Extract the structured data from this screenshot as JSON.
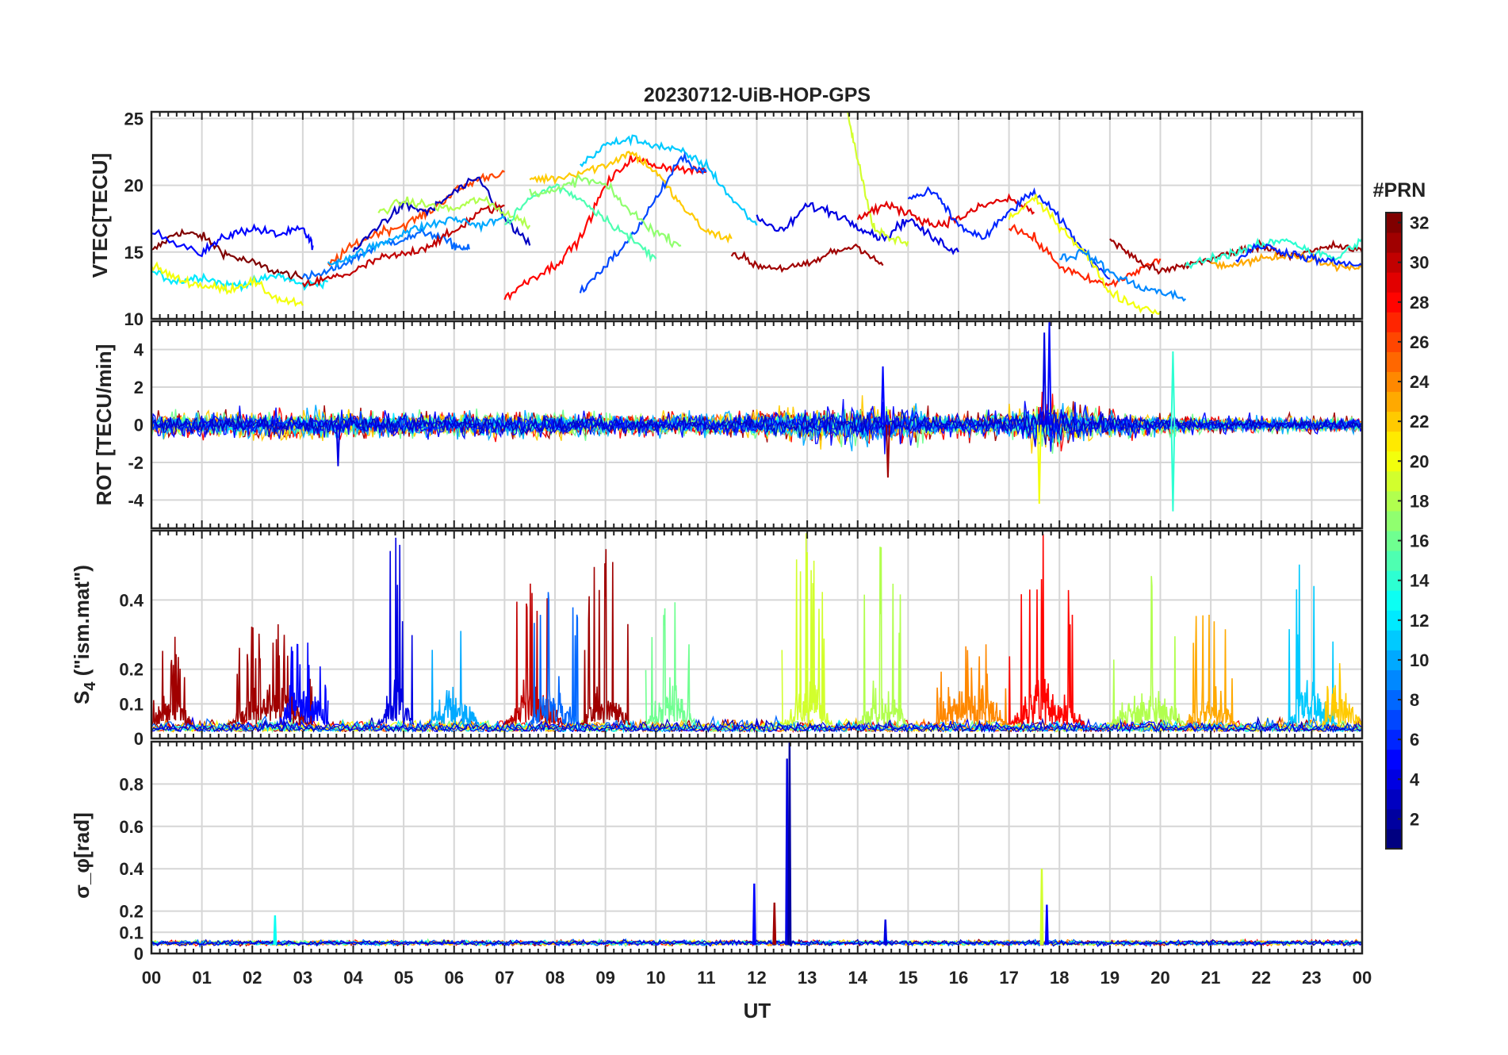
{
  "chart_data": {
    "type": "line",
    "title": "20230712-UiB-HOP-GPS",
    "xlabel": "UT",
    "x_ticks": [
      "00",
      "01",
      "02",
      "03",
      "04",
      "05",
      "06",
      "07",
      "08",
      "09",
      "10",
      "11",
      "12",
      "13",
      "14",
      "15",
      "16",
      "17",
      "18",
      "19",
      "20",
      "21",
      "22",
      "23",
      "00"
    ],
    "xlim": [
      0,
      24
    ],
    "colorbar": {
      "title": "#PRN",
      "range": [
        1,
        32
      ],
      "ticks": [
        "2",
        "4",
        "6",
        "8",
        "10",
        "12",
        "14",
        "16",
        "18",
        "20",
        "22",
        "24",
        "26",
        "28",
        "30",
        "32"
      ],
      "colormap": "jet"
    },
    "panels": [
      {
        "id": "vtec",
        "ylabel": "VTEC[TECU]",
        "ylim": [
          10,
          25.5
        ],
        "yticks": [
          "10",
          "15",
          "20",
          "25"
        ],
        "series": [
          {
            "prn": 32,
            "x": [
              0,
              0.5,
              1,
              1.5,
              2,
              2.5,
              3
            ],
            "y": [
              15,
              16.5,
              16.2,
              14.8,
              14.2,
              13.5,
              13
            ]
          },
          {
            "prn": 5,
            "x": [
              0,
              1,
              1.5,
              2,
              2.5,
              3,
              3.2
            ],
            "y": [
              16.5,
              15,
              16.2,
              16.8,
              16.3,
              16.7,
              15.5
            ]
          },
          {
            "prn": 12,
            "x": [
              0,
              0.5,
              1,
              1.5,
              2,
              2.5,
              3,
              3.5
            ],
            "y": [
              13.5,
              12.8,
              13.2,
              12.5,
              12.7,
              13.3,
              12.5,
              12.8
            ]
          },
          {
            "prn": 20,
            "x": [
              0,
              0.5,
              1,
              1.5,
              2,
              2.5,
              3
            ],
            "y": [
              14,
              13,
              12.5,
              12.2,
              12.8,
              11.5,
              11
            ]
          },
          {
            "prn": 26,
            "x": [
              3.5,
              4,
              4.5,
              5,
              5.5,
              6,
              6.5,
              7
            ],
            "y": [
              14,
              15.5,
              16.5,
              17,
              18,
              19.5,
              20.5,
              21
            ]
          },
          {
            "prn": 8,
            "x": [
              3,
              3.5,
              4,
              4.5,
              5,
              5.5,
              6,
              6.3
            ],
            "y": [
              13,
              13.5,
              14.5,
              15.5,
              16,
              16.5,
              15.5,
              15.2
            ]
          },
          {
            "prn": 3,
            "x": [
              4,
              4.5,
              5,
              5.5,
              6,
              6.5,
              7,
              7.5
            ],
            "y": [
              15,
              17,
              18.5,
              18,
              19.5,
              20.5,
              17.5,
              15.5
            ]
          },
          {
            "prn": 30,
            "x": [
              3,
              3.5,
              4,
              4.5,
              5,
              5.5,
              6,
              6.5,
              7
            ],
            "y": [
              12.5,
              13,
              13.5,
              14.5,
              14.8,
              15.5,
              16.5,
              18,
              18.5
            ]
          },
          {
            "prn": 10,
            "x": [
              3.5,
              4,
              4.5,
              5,
              5.5,
              6,
              6.5,
              7
            ],
            "y": [
              14,
              14.8,
              15.5,
              16.5,
              17,
              17.5,
              17,
              17.5
            ]
          },
          {
            "prn": 18,
            "x": [
              4.5,
              5,
              5.5,
              6,
              6.5,
              7,
              7.5
            ],
            "y": [
              18,
              18.8,
              18.5,
              18.2,
              19,
              18,
              17
            ]
          },
          {
            "prn": 28,
            "x": [
              7,
              7.5,
              8,
              8.5,
              9,
              9.5,
              10,
              10.5,
              11
            ],
            "y": [
              11.5,
              13,
              14,
              16,
              20,
              22,
              21.5,
              21.2,
              21
            ]
          },
          {
            "prn": 22,
            "x": [
              7.5,
              8,
              8.5,
              9,
              9.5,
              10,
              10.5,
              11,
              11.5
            ],
            "y": [
              20.5,
              20.5,
              21,
              21.5,
              22.5,
              21,
              18.5,
              16.5,
              16
            ]
          },
          {
            "prn": 11,
            "x": [
              8.5,
              9,
              9.5,
              10,
              10.5,
              11,
              11.5,
              12
            ],
            "y": [
              21.5,
              23,
              23.5,
              23,
              22.5,
              21.5,
              19,
              17
            ]
          },
          {
            "prn": 7,
            "x": [
              8.5,
              9,
              9.5,
              10,
              10.5,
              11
            ],
            "y": [
              12,
              14,
              16,
              19,
              22,
              21
            ]
          },
          {
            "prn": 15,
            "x": [
              7,
              7.5,
              8,
              8.5,
              9,
              9.5,
              10
            ],
            "y": [
              17,
              19,
              20,
              19,
              17.5,
              16,
              14.5
            ]
          },
          {
            "prn": 17,
            "x": [
              7.5,
              8,
              8.5,
              9,
              9.5,
              10,
              10.5
            ],
            "y": [
              19.5,
              19.5,
              20.5,
              20,
              18,
              16.5,
              15.5
            ]
          },
          {
            "prn": 31,
            "x": [
              11.5,
              12,
              12.5,
              13,
              13.5,
              14,
              14.5
            ],
            "y": [
              15,
              14,
              13.8,
              14,
              15,
              15.5,
              14
            ]
          },
          {
            "prn": 4,
            "x": [
              12,
              12.5,
              13,
              13.5,
              14,
              14.5,
              15,
              15.5,
              16
            ],
            "y": [
              17.5,
              16.5,
              18.5,
              18,
              17,
              16,
              17.5,
              16,
              15
            ]
          },
          {
            "prn": 19,
            "x": [
              13.8,
              14,
              14.3,
              14.6,
              15
            ],
            "y": [
              25.5,
              22,
              17,
              16,
              15.8
            ]
          },
          {
            "prn": 29,
            "x": [
              14,
              14.5,
              15,
              15.5,
              16,
              16.5,
              17,
              17.5
            ],
            "y": [
              17.5,
              18.5,
              18,
              17,
              17.5,
              18.5,
              19,
              18
            ]
          },
          {
            "prn": 6,
            "x": [
              15,
              15.5,
              16,
              16.5,
              17,
              17.5,
              18,
              18.5,
              19
            ],
            "y": [
              19,
              19.5,
              17,
              16,
              18,
              19.5,
              17.5,
              15,
              13
            ]
          },
          {
            "prn": 27,
            "x": [
              17,
              17.5,
              18,
              18.5,
              19,
              19.5,
              20
            ],
            "y": [
              17,
              16,
              14,
              13,
              12.5,
              13.5,
              14.5
            ]
          },
          {
            "prn": 20,
            "x": [
              17,
              17.5,
              18,
              18.5,
              19,
              19.5,
              20
            ],
            "y": [
              17.5,
              19,
              17,
              15,
              12,
              11,
              10.5
            ]
          },
          {
            "prn": 9,
            "x": [
              18,
              18.5,
              19,
              19.5,
              20,
              20.5
            ],
            "y": [
              14.5,
              15,
              13.5,
              12.5,
              12,
              11.5
            ]
          },
          {
            "prn": 31,
            "x": [
              19,
              19.5,
              20,
              20.5,
              21,
              21.5,
              22,
              22.5,
              23,
              23.5,
              24
            ],
            "y": [
              16,
              14.5,
              13.5,
              14,
              14.5,
              15,
              15.5,
              14.8,
              15,
              15.5,
              15
            ]
          },
          {
            "prn": 14,
            "x": [
              20.5,
              21,
              21.5,
              22,
              22.5,
              23,
              23.5,
              24
            ],
            "y": [
              14,
              14.5,
              15,
              15.5,
              16,
              15,
              14.5,
              16
            ]
          },
          {
            "prn": 23,
            "x": [
              21,
              21.5,
              22,
              22.5,
              23,
              23.5,
              24
            ],
            "y": [
              14,
              14,
              14.5,
              14.8,
              14.5,
              14,
              13.8
            ]
          },
          {
            "prn": 6,
            "x": [
              21.5,
              22,
              22.5,
              23,
              23.5,
              24
            ],
            "y": [
              14.5,
              15.5,
              15,
              14.5,
              14.2,
              14
            ]
          }
        ]
      },
      {
        "id": "rot",
        "ylabel": "ROT [TECU/min]",
        "ylim": [
          -5.5,
          5.5
        ],
        "yticks": [
          "-4",
          "-2",
          "0",
          "2",
          "4"
        ],
        "noise": [
          {
            "x": 0,
            "a": 0.8
          },
          {
            "x": 2,
            "a": 0.9
          },
          {
            "x": 4,
            "a": 0.9
          },
          {
            "x": 6,
            "a": 0.8
          },
          {
            "x": 8,
            "a": 0.8
          },
          {
            "x": 10,
            "a": 0.7
          },
          {
            "x": 11.5,
            "a": 0.8
          },
          {
            "x": 12.5,
            "a": 1.1
          },
          {
            "x": 14,
            "a": 1.3
          },
          {
            "x": 15,
            "a": 1.1
          },
          {
            "x": 16,
            "a": 0.7
          },
          {
            "x": 17,
            "a": 0.9
          },
          {
            "x": 17.8,
            "a": 1.6
          },
          {
            "x": 19,
            "a": 0.8
          },
          {
            "x": 21,
            "a": 0.5
          },
          {
            "x": 24,
            "a": 0.5
          }
        ],
        "spikes": [
          {
            "x": 17.7,
            "y": 4.9,
            "prn": 4
          },
          {
            "x": 17.8,
            "y": 5.5,
            "prn": 5
          },
          {
            "x": 17.6,
            "y": -4.2,
            "prn": 20
          },
          {
            "x": 20.25,
            "y": 3.9,
            "prn": 14
          },
          {
            "x": 20.25,
            "y": -4.6,
            "prn": 14
          },
          {
            "x": 14.5,
            "y": 3.1,
            "prn": 5
          },
          {
            "x": 14.6,
            "y": -2.8,
            "prn": 31
          },
          {
            "x": 3.7,
            "y": -2.2,
            "prn": 4
          }
        ]
      },
      {
        "id": "s4",
        "ylabel_main": "S",
        "ylabel_sub": "4",
        "ylabel_rest": " (\"ism.mat\")",
        "ylim": [
          0,
          0.6
        ],
        "yticks": [
          "0",
          "0.1",
          "0.2",
          "0.4"
        ],
        "bursts": [
          {
            "x0": 0,
            "x1": 0.8,
            "a": 0.3,
            "prn": 31
          },
          {
            "x0": 1.5,
            "x1": 3.2,
            "a": 0.38,
            "prn": 31
          },
          {
            "x0": 2.5,
            "x1": 3.5,
            "a": 0.32,
            "prn": 5
          },
          {
            "x0": 4.5,
            "x1": 5.2,
            "a": 0.6,
            "prn": 4
          },
          {
            "x0": 5.5,
            "x1": 6.5,
            "a": 0.45,
            "prn": 10
          },
          {
            "x0": 7,
            "x1": 8.2,
            "a": 0.5,
            "prn": 30
          },
          {
            "x0": 7.5,
            "x1": 8.5,
            "a": 0.6,
            "prn": 8
          },
          {
            "x0": 8.5,
            "x1": 9.5,
            "a": 0.6,
            "prn": 31
          },
          {
            "x0": 9.8,
            "x1": 10.8,
            "a": 0.45,
            "prn": 16
          },
          {
            "x0": 12.5,
            "x1": 13.5,
            "a": 0.6,
            "prn": 19
          },
          {
            "x0": 14,
            "x1": 15,
            "a": 0.6,
            "prn": 18
          },
          {
            "x0": 15.5,
            "x1": 17,
            "a": 0.3,
            "prn": 24
          },
          {
            "x0": 17,
            "x1": 18.5,
            "a": 0.6,
            "prn": 28
          },
          {
            "x0": 19,
            "x1": 20.5,
            "a": 0.6,
            "prn": 18
          },
          {
            "x0": 20.5,
            "x1": 21.5,
            "a": 0.45,
            "prn": 23
          },
          {
            "x0": 22.5,
            "x1": 23.5,
            "a": 0.6,
            "prn": 11
          },
          {
            "x0": 23.2,
            "x1": 24,
            "a": 0.25,
            "prn": 22
          }
        ]
      },
      {
        "id": "sigphi",
        "ylabel": "σ_φ[rad]",
        "ylim": [
          0,
          1
        ],
        "yticks": [
          "0",
          "0.1",
          "0.2",
          "0.4",
          "0.6",
          "0.8"
        ],
        "baseline": 0.05,
        "spikes": [
          {
            "x": 2.45,
            "y": 0.18,
            "prn": 13
          },
          {
            "x": 11.95,
            "y": 0.33,
            "prn": 5
          },
          {
            "x": 12.6,
            "y": 0.92,
            "prn": 4
          },
          {
            "x": 12.65,
            "y": 1.0,
            "prn": 2
          },
          {
            "x": 12.35,
            "y": 0.24,
            "prn": 31
          },
          {
            "x": 17.65,
            "y": 0.4,
            "prn": 19
          },
          {
            "x": 17.75,
            "y": 0.23,
            "prn": 5
          },
          {
            "x": 14.55,
            "y": 0.16,
            "prn": 4
          }
        ]
      }
    ]
  }
}
